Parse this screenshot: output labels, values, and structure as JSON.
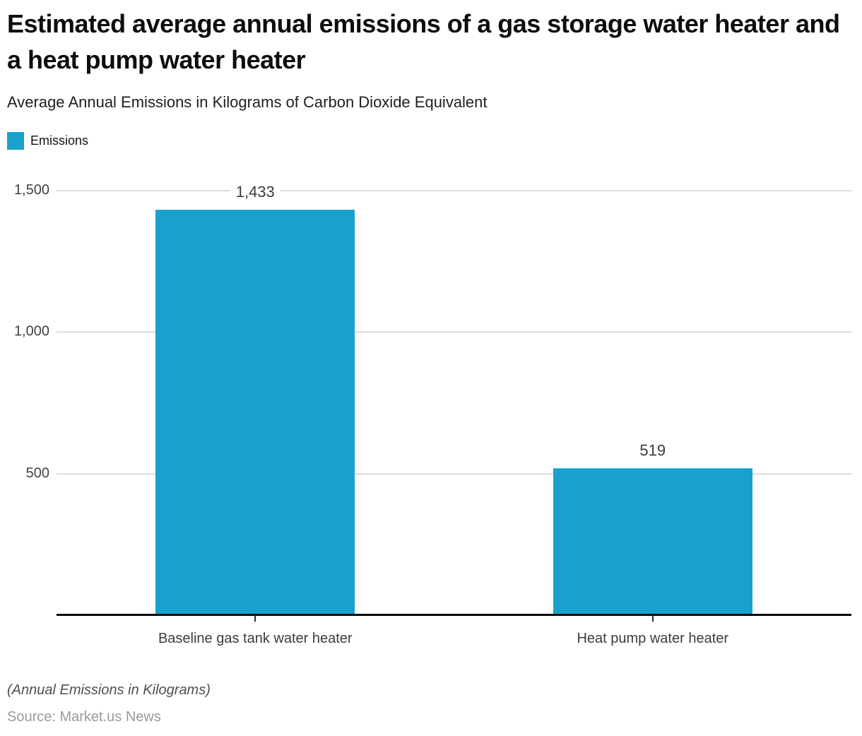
{
  "header": {
    "title": "Estimated average annual emissions of a gas storage water heater and a heat pump water heater",
    "subtitle": "Average Annual Emissions in Kilograms of Carbon Dioxide Equivalent"
  },
  "legend": {
    "label": "Emissions",
    "swatch_color": "#18a1cd"
  },
  "chart_data": {
    "type": "bar",
    "title": "Estimated average annual emissions of a gas storage water heater and a heat pump water heater",
    "subtitle": "Average Annual Emissions in Kilograms of Carbon Dioxide Equivalent",
    "series": [
      {
        "name": "Emissions",
        "values": [
          1433,
          519
        ],
        "value_labels": [
          "1,433",
          "519"
        ],
        "color": "#18a1cd"
      }
    ],
    "categories": [
      "Baseline gas tank water heater",
      "Heat pump water heater"
    ],
    "xlabel": "",
    "ylabel": "",
    "ylim": [
      0,
      1500
    ],
    "yticks": [
      500,
      1000,
      1500
    ],
    "ytick_labels": [
      "500",
      "1,000",
      "1,500"
    ],
    "grid": true,
    "legend_position": "top-left"
  },
  "footer": {
    "note": "(Annual Emissions in Kilograms)",
    "source": "Source: Market.us News"
  }
}
